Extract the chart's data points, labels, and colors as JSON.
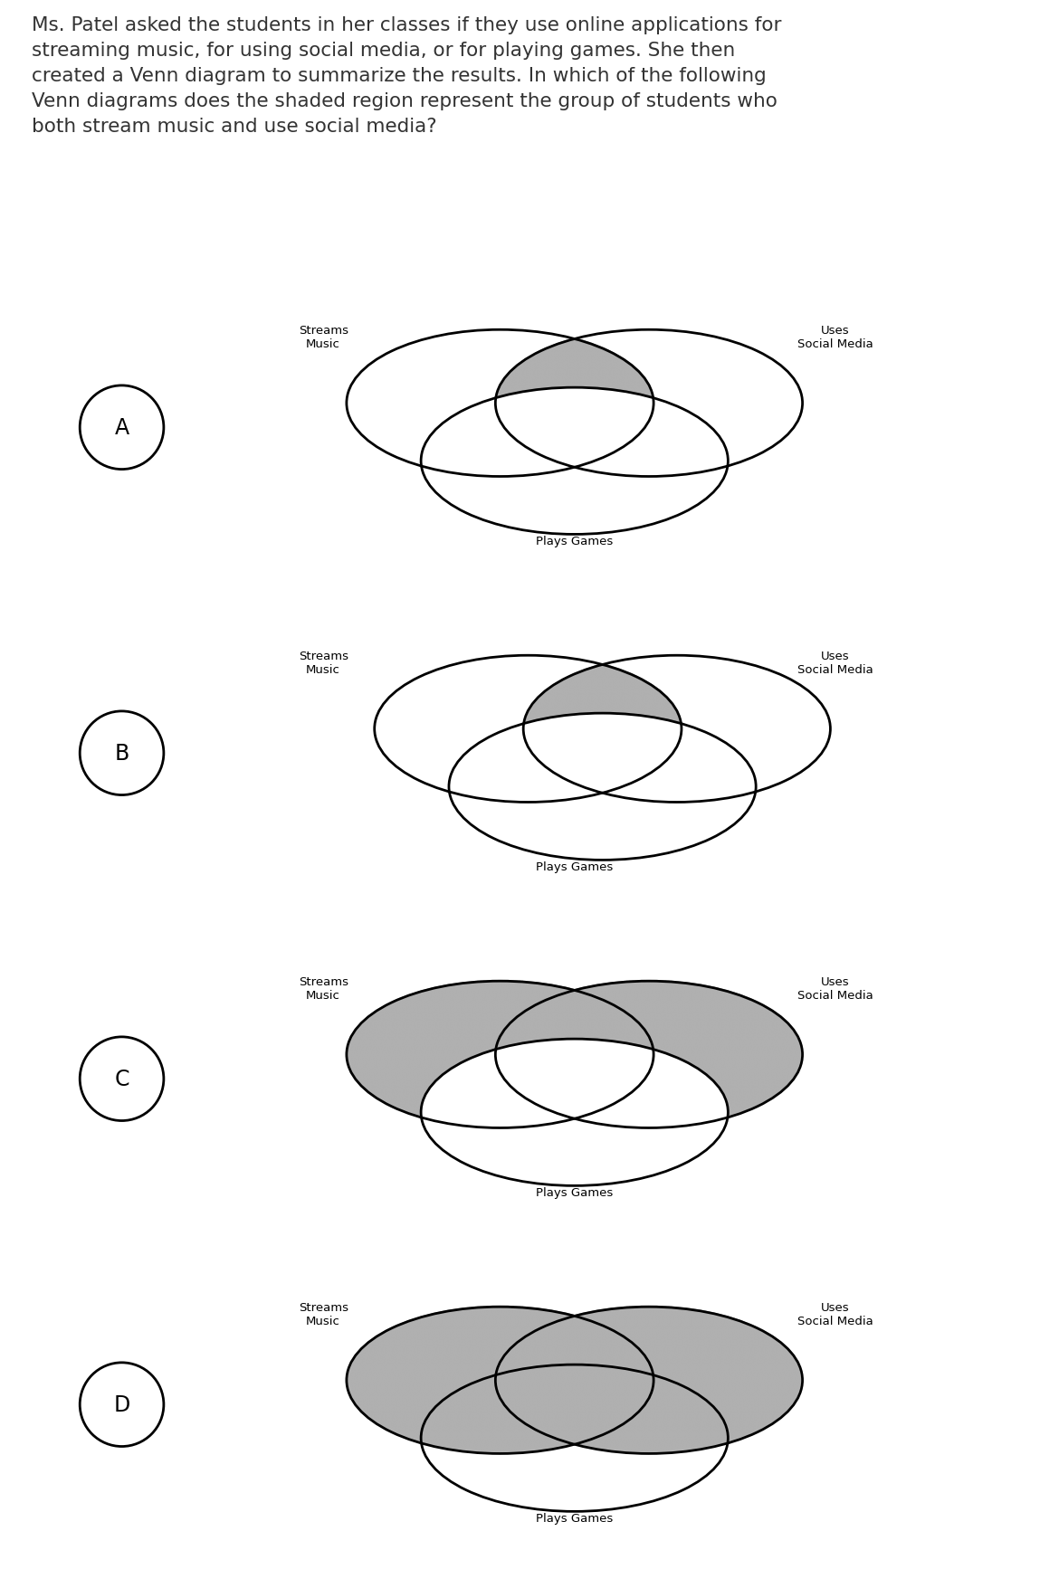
{
  "question_text": "Ms. Patel asked the students in her classes if they use online applications for\nstreaming music, for using social media, or for playing games. She then\ncreated a Venn diagram to summarize the results. In which of the following\nVenn diagrams does the shaded region represent the group of students who\nboth stream music and use social media?",
  "shade_color": "#b0b0b0",
  "background_color": "#ffffff",
  "text_color": "#333333",
  "label_streams": "Streams\nMusic",
  "label_social": "Uses\nSocial Media",
  "label_games": "Plays Games",
  "cyan_border": "#4dd0e1",
  "diagrams": [
    {
      "letter": "A",
      "shade": "music_social_excl_games"
    },
    {
      "letter": "B",
      "shade": "music_social_excl_games_shifted"
    },
    {
      "letter": "C",
      "shade": "music_and_social_full"
    },
    {
      "letter": "D",
      "shade": "music_union_social"
    }
  ]
}
